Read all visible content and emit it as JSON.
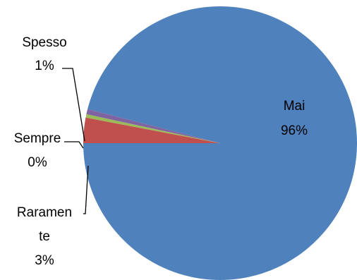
{
  "chart_data": {
    "type": "pie",
    "title": "",
    "slices": [
      {
        "label": "Mai",
        "value": 96,
        "value_label": "96%",
        "color": "#4F81BD"
      },
      {
        "label": "Raramente",
        "value": 3,
        "value_label": "3%",
        "color": "#C0504D"
      },
      {
        "label": "Sempre",
        "value": 0.4,
        "value_label": "0%",
        "color": "#9BBB59"
      },
      {
        "label": "Spesso",
        "value": 0.6,
        "value_label": "1%",
        "color": "#8064A2"
      }
    ],
    "legend": "none"
  },
  "labels": {
    "mai": {
      "name": "Mai",
      "pct": "96%"
    },
    "spesso": {
      "name": "Spesso",
      "pct": "1%"
    },
    "sempre": {
      "name": "Sempre",
      "pct": "0%"
    },
    "raramente": {
      "name_line1": "Raramen",
      "name_line2": "te",
      "pct": "3%"
    }
  }
}
